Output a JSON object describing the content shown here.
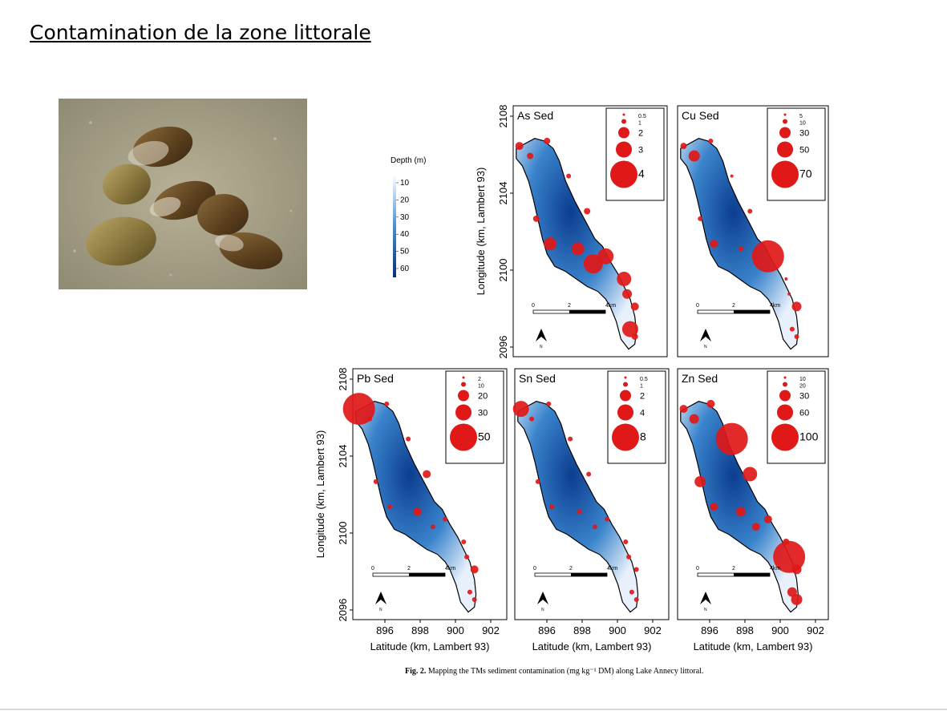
{
  "slide": {
    "title": "Contamination de la zone littorale"
  },
  "photo": {
    "subject": "freshwater mussels on sandy lake bed"
  },
  "legend": {
    "title": "Depth (m)",
    "levels": [
      "10",
      "20",
      "30",
      "40",
      "50",
      "60"
    ]
  },
  "axes": {
    "ylabel": "Longitude (km, Lambert 93)",
    "xlabel": "Latitude (km, Lambert 93)",
    "yticks": [
      "2096",
      "2100",
      "2104",
      "2108"
    ],
    "xticks": [
      "896",
      "898",
      "900",
      "902"
    ]
  },
  "scalebar": {
    "labels": [
      "0",
      "2",
      "4km"
    ],
    "north": "N"
  },
  "panels": [
    {
      "title": "As Sed",
      "sizes": [
        "0.5",
        "1",
        "2",
        "3",
        "4"
      ]
    },
    {
      "title": "Cu Sed",
      "sizes": [
        "5",
        "10",
        "30",
        "50",
        "70"
      ]
    },
    {
      "title": "Pb Sed",
      "sizes": [
        "2",
        "10",
        "20",
        "30",
        "50"
      ]
    },
    {
      "title": "Sn Sed",
      "sizes": [
        "0.5",
        "1",
        "2",
        "4",
        "8"
      ]
    },
    {
      "title": "Zn Sed",
      "sizes": [
        "10",
        "20",
        "30",
        "60",
        "100"
      ]
    }
  ],
  "caption": {
    "label": "Fig. 2.",
    "text": "Mapping the TMs sediment contamination (mg kg⁻¹ DM) along Lake Annecy littoral."
  }
}
